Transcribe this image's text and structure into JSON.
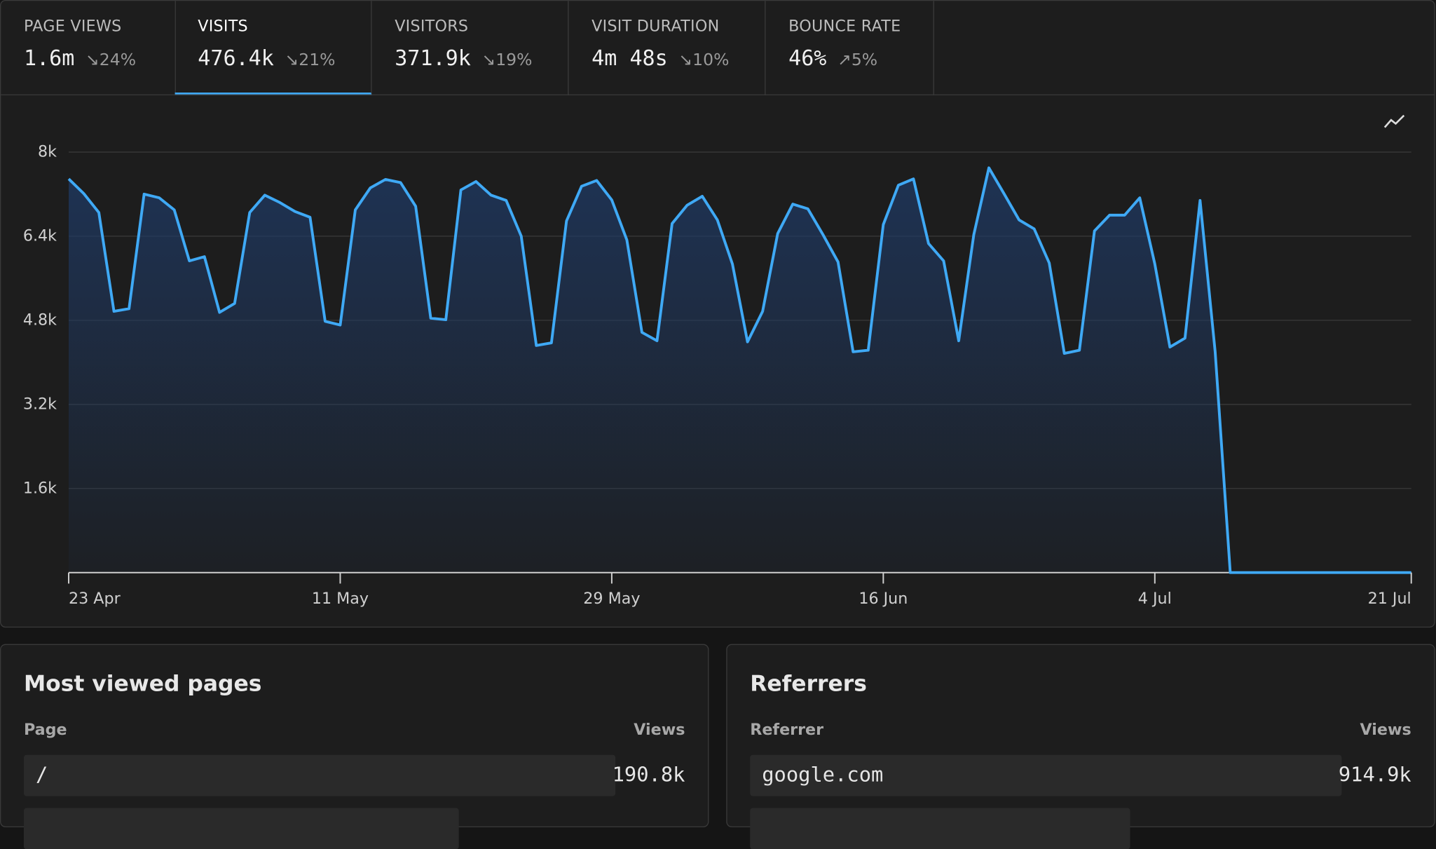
{
  "tabs": [
    {
      "label": "PAGE VIEWS",
      "value": "1.6m",
      "change": "24%"
    },
    {
      "label": "VISITS",
      "value": "476.4k",
      "change": "21%"
    },
    {
      "label": "VISITORS",
      "value": "371.9k",
      "change": "19%"
    },
    {
      "label": "VISIT DURATION",
      "value": "4m 48s",
      "change": "10%"
    },
    {
      "label": "BOUNCE RATE",
      "value": "46%",
      "change": "5%"
    }
  ],
  "chart_data": {
    "type": "area",
    "color": "#3fa9f5",
    "categories": [
      "23 Apr",
      null,
      null,
      null,
      null,
      null,
      null,
      null,
      null,
      null,
      null,
      null,
      null,
      null,
      null,
      null,
      null,
      null,
      "11 May",
      null,
      null,
      null,
      null,
      null,
      null,
      null,
      null,
      null,
      null,
      null,
      null,
      null,
      null,
      null,
      null,
      null,
      "29 May",
      null,
      null,
      null,
      null,
      null,
      null,
      null,
      null,
      null,
      null,
      null,
      null,
      null,
      null,
      null,
      null,
      null,
      "16 Jun",
      null,
      null,
      null,
      null,
      null,
      null,
      null,
      null,
      null,
      null,
      null,
      null,
      null,
      null,
      null,
      null,
      null,
      "4 Jul",
      null,
      null,
      null,
      null,
      null,
      null,
      null,
      null,
      null,
      null,
      null,
      null,
      null,
      null,
      null,
      null,
      "21 Jul"
    ],
    "values": [
      7490,
      7210,
      6850,
      4970,
      5020,
      7200,
      7130,
      6900,
      5930,
      6010,
      4950,
      5120,
      6850,
      7180,
      7040,
      6870,
      6760,
      4780,
      4710,
      6900,
      7320,
      7480,
      7420,
      6970,
      4840,
      4810,
      7280,
      7440,
      7180,
      7080,
      6400,
      4320,
      4370,
      6690,
      7350,
      7460,
      7090,
      6330,
      4570,
      4410,
      6640,
      6990,
      7160,
      6710,
      5870,
      4390,
      4970,
      6450,
      7010,
      6920,
      6430,
      5910,
      4200,
      4230,
      6620,
      7370,
      7490,
      6260,
      5930,
      4410,
      6430,
      7700,
      7210,
      6710,
      6540,
      5890,
      4170,
      4230,
      6500,
      6800,
      6800,
      7130,
      5870,
      4290,
      4460,
      7080,
      4200,
      0,
      0,
      0,
      0,
      0,
      0,
      0,
      0,
      0,
      0,
      0,
      0,
      0
    ],
    "ylim": [
      0,
      8000
    ],
    "yticks": [
      {
        "value": 1600,
        "label": "1.6k"
      },
      {
        "value": 3200,
        "label": "3.2k"
      },
      {
        "value": 4800,
        "label": "4.8k"
      },
      {
        "value": 6400,
        "label": "6.4k"
      },
      {
        "value": 8000,
        "label": "8k"
      }
    ],
    "grid": true
  },
  "pages": {
    "title": "Most viewed pages",
    "columns": [
      "Page",
      "Views"
    ],
    "rows": [
      [
        "/",
        "190.8k"
      ]
    ]
  },
  "referrers": {
    "title": "Referrers",
    "columns": [
      "Referrer",
      "Views"
    ],
    "rows": [
      [
        "google.com",
        "914.9k"
      ]
    ]
  }
}
